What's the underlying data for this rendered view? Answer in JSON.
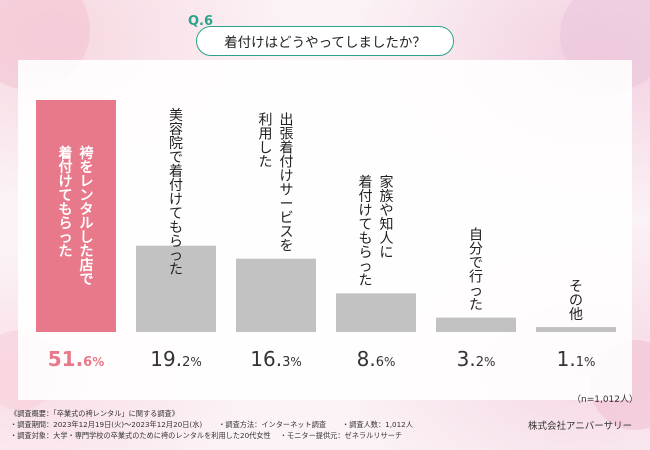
{
  "question": {
    "number": "Q.6",
    "text": "着付けはどうやってしましたか？"
  },
  "chart_data": {
    "type": "bar",
    "categories": [
      "袴をレンタルした店で着付けてもらった",
      "美容院で着付けてもらった",
      "出張着付けサービスを利用した",
      "家族や知人に着付けてもらった",
      "自分で行った",
      "その他"
    ],
    "values": [
      51.6,
      19.2,
      16.3,
      8.6,
      3.2,
      1.1
    ],
    "value_labels": [
      [
        "51.",
        "6",
        "%"
      ],
      [
        "19.",
        "2",
        "%"
      ],
      [
        "16.",
        "3",
        "%"
      ],
      [
        "8.",
        "6",
        "%"
      ],
      [
        "3.",
        "2",
        "%"
      ],
      [
        "1.",
        "1",
        "%"
      ]
    ],
    "label_lines": [
      [
        "着付けてもらった",
        "袴をレンタルした店で"
      ],
      [
        "美容院で着付けてもらった"
      ],
      [
        "利用した",
        "出張着付けサービスを"
      ],
      [
        "着付けてもらった",
        "家族や知人に"
      ],
      [
        "自分で行った"
      ],
      [
        "その他"
      ]
    ],
    "ylim": [
      0,
      51.6
    ],
    "highlight_index": 0,
    "colors": {
      "highlight": "#e8798a",
      "bar": "#c2c2c2",
      "highlight_text": "#ffffff",
      "text": "#222222"
    }
  },
  "sample_size": "（n=1,012人）",
  "footer": {
    "line1": "《調査概要：「卒業式の袴レンタル」に関する調査》",
    "line2a": "・調査期間：2023年12月19日(火)〜2023年12月20日(水)",
    "line2b": "・調査方法：インターネット調査",
    "line2c": "・調査人数：1,012人",
    "line3a": "・調査対象：大学・専門学校の卒業式のために袴のレンタルを利用した20代女性",
    "line3b": "・モニター提供元：ゼネラルリサーチ"
  },
  "company": "株式会社アニバーサリー"
}
